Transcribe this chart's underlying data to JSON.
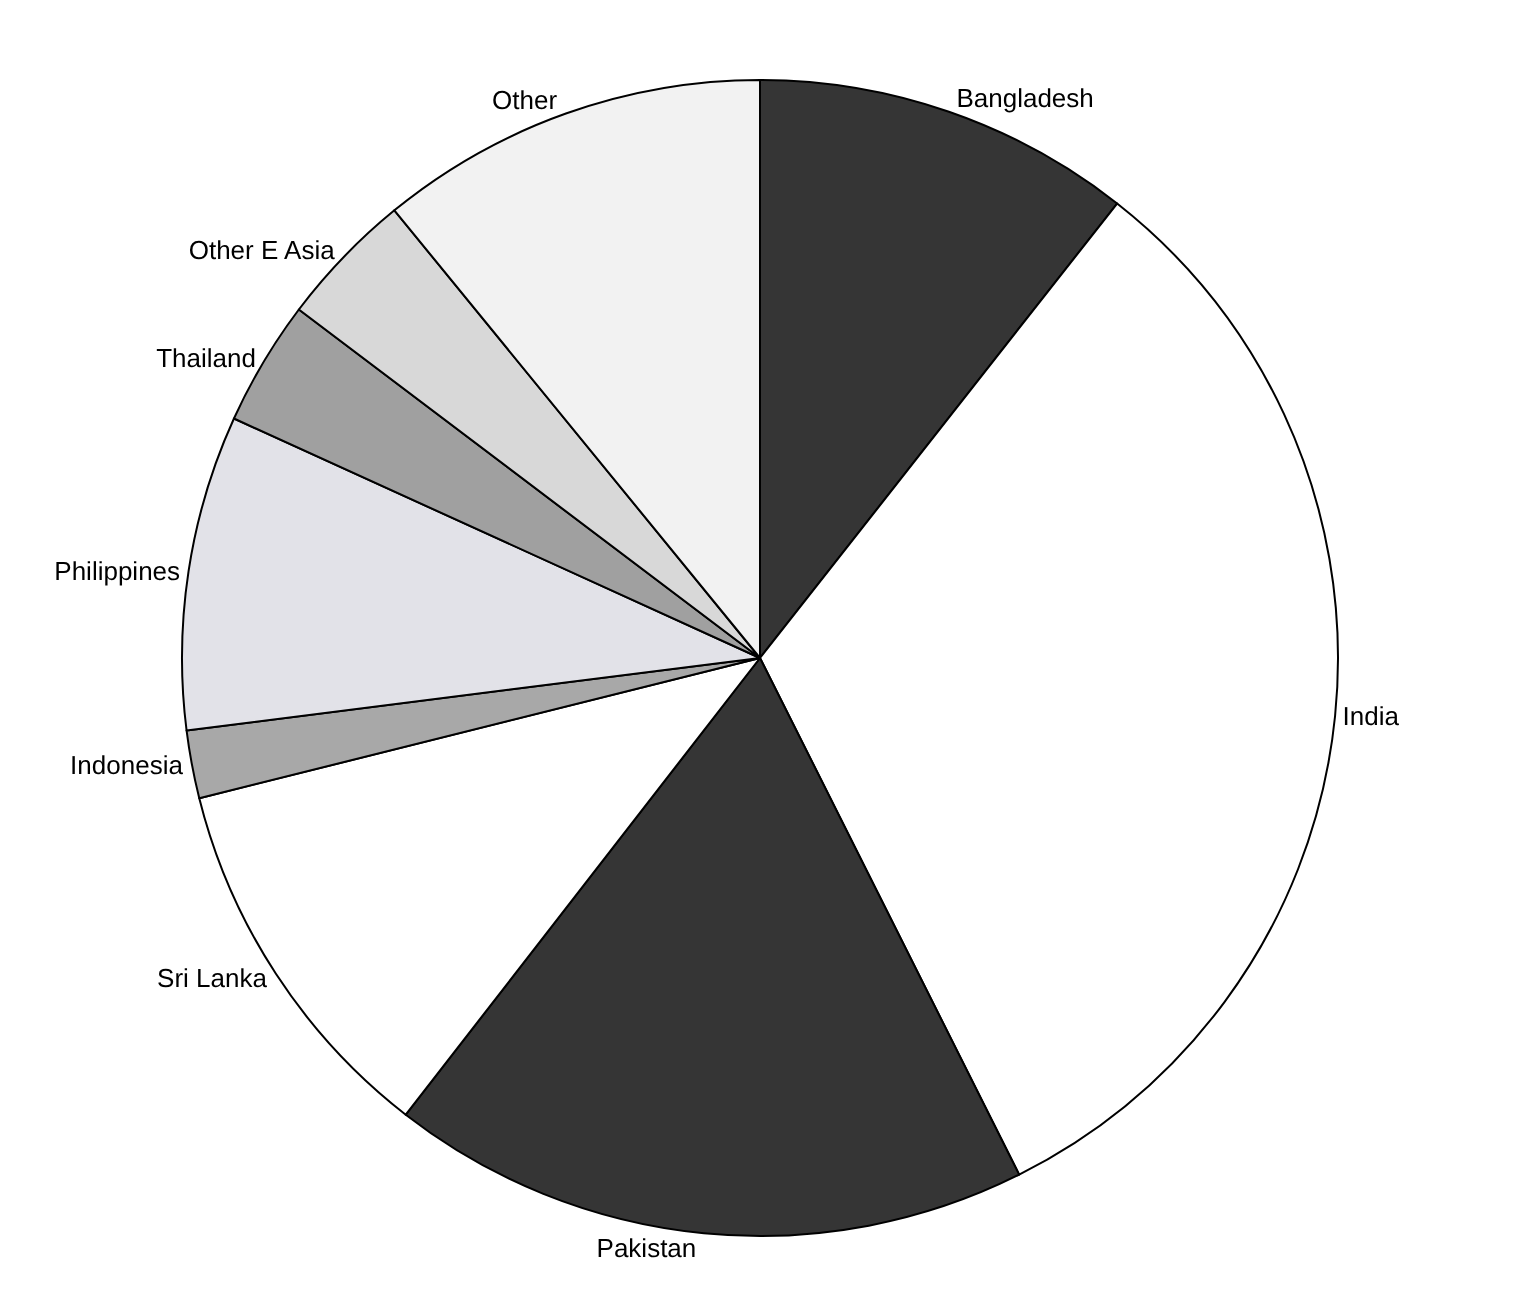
{
  "chart_data": {
    "type": "pie",
    "categories": [
      "Bangladesh",
      "India",
      "Pakistan",
      "Sri Lanka",
      "Indonesia",
      "Philippines",
      "Thailand",
      "Other E Asia",
      "Other"
    ],
    "values": [
      10.6,
      32.0,
      17.9,
      10.6,
      1.9,
      8.8,
      3.5,
      3.8,
      10.9
    ],
    "colors": [
      "#353535",
      "#ffffff",
      "#353535",
      "#ffffff",
      "#a8a8a8",
      "#e2e2e8",
      "#a0a0a0",
      "#d8d8d8",
      "#f2f2f2"
    ],
    "legend": false
  }
}
